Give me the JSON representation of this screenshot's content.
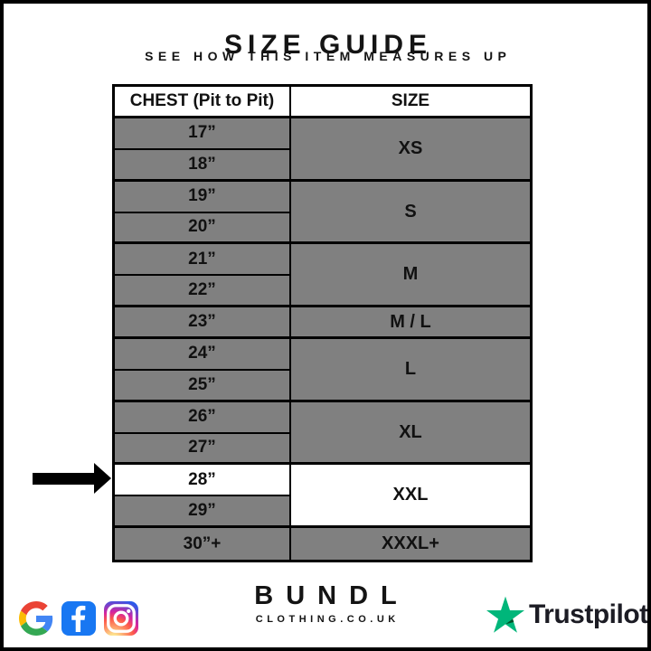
{
  "page": {
    "title": "SIZE GUIDE",
    "subtitle": "SEE HOW THIS ITEM MEASURES UP"
  },
  "table": {
    "headers": {
      "chest": "CHEST (Pit to Pit)",
      "size": "SIZE"
    },
    "rows": [
      {
        "chest": "17”",
        "size": "XS",
        "span": 2
      },
      {
        "chest": "18”"
      },
      {
        "chest": "19”",
        "size": "S",
        "span": 2
      },
      {
        "chest": "20”"
      },
      {
        "chest": "21”",
        "size": "M",
        "span": 2
      },
      {
        "chest": "22”"
      },
      {
        "chest": "23”",
        "size": "M / L",
        "span": 1
      },
      {
        "chest": "24”",
        "size": "L",
        "span": 2
      },
      {
        "chest": "25”"
      },
      {
        "chest": "26”",
        "size": "XL",
        "span": 2
      },
      {
        "chest": "27”"
      },
      {
        "chest": "28”",
        "size": "XXL",
        "span": 2,
        "highlight": true
      },
      {
        "chest": "29”"
      },
      {
        "chest": "30”+",
        "size": "XXXL+",
        "span": 1
      }
    ],
    "colors": {
      "row_gray": "#808080",
      "highlight": "#ffffff",
      "border": "#000000",
      "header_bg": "#ffffff"
    }
  },
  "annotation_arrow": {
    "points_to_chest": "28”",
    "points_to_size": "XXL",
    "color": "#000000"
  },
  "footer": {
    "social": {
      "icons": [
        {
          "name": "google-icon"
        },
        {
          "name": "facebook-icon",
          "bg": "#1877F2"
        },
        {
          "name": "instagram-icon"
        }
      ]
    },
    "brand": {
      "name": "BUNDL",
      "domain": "CLOTHING.CO.UK"
    },
    "trustpilot": {
      "label": "Trustpilot",
      "star_color": "#00B67A",
      "star_shadow_color": "#005128",
      "text_color": "#1c1c24"
    }
  },
  "chart_data": {
    "type": "table",
    "title": "SIZE GUIDE",
    "subtitle": "SEE HOW THIS ITEM MEASURES UP",
    "columns": [
      "CHEST (Pit to Pit)",
      "SIZE"
    ],
    "rows": [
      [
        "17”",
        "XS"
      ],
      [
        "18”",
        "XS"
      ],
      [
        "19”",
        "S"
      ],
      [
        "20”",
        "S"
      ],
      [
        "21”",
        "M"
      ],
      [
        "22”",
        "M"
      ],
      [
        "23”",
        "M / L"
      ],
      [
        "24”",
        "L"
      ],
      [
        "25”",
        "L"
      ],
      [
        "26”",
        "XL"
      ],
      [
        "27”",
        "XL"
      ],
      [
        "28”",
        "XXL"
      ],
      [
        "29”",
        "XXL"
      ],
      [
        "30”+",
        "XXXL+"
      ]
    ],
    "highlighted_row": "28” → XXL",
    "layout": {
      "header_bg": "#ffffff",
      "row_bg": "#808080",
      "highlight_bg": "#ffffff",
      "grid": "on"
    }
  }
}
